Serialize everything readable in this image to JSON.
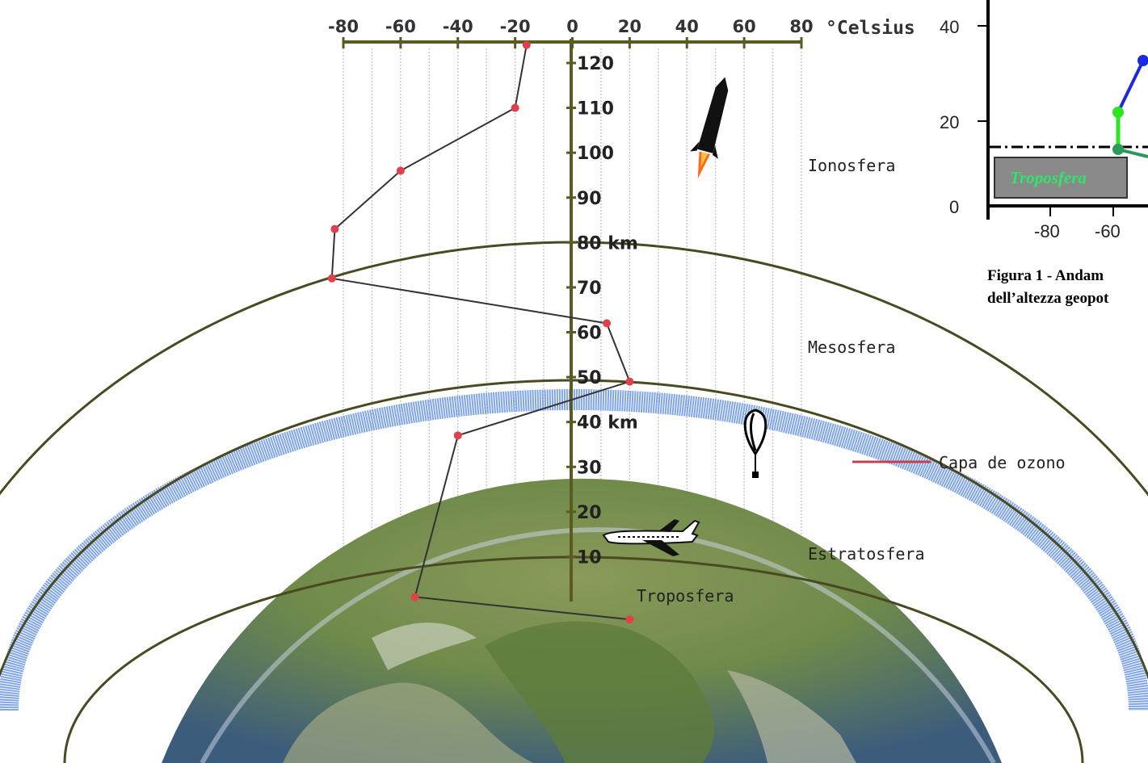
{
  "colors": {
    "axis": "#5b5a20",
    "shell": "#4a4a22",
    "ozone": "#7fa4e8",
    "profile_line": "#333333",
    "profile_point": "#e0404a",
    "grid": "#c9cbd4",
    "inset_blue": "#1a2ae0",
    "inset_green": "#2ee620",
    "inset_darkgreen": "#2c9a5a",
    "inset_box": "#8a8a8a"
  },
  "main": {
    "temp_unit": "°Celsius",
    "temp_ticks": [
      "-80",
      "-60",
      "-40",
      "-20",
      "0",
      "20",
      "40",
      "60",
      "80"
    ],
    "altitude_ticks": [
      "120",
      "110",
      "100",
      "90",
      "80 km",
      "70",
      "60",
      "50",
      "40 km",
      "30",
      "20",
      "10"
    ],
    "layers": {
      "ionosfera": "Ionosfera",
      "mesosfera": "Mesosfera",
      "estratosfera": "Estratosfera",
      "troposfera": "Troposfera",
      "ozone": "Capa de ozono"
    },
    "icons": [
      "rocket-icon",
      "balloon-icon",
      "airplane-icon",
      "earth-icon"
    ]
  },
  "chart_data": {
    "type": "line",
    "xlabel": "°Celsius",
    "xlim": [
      -80,
      80
    ],
    "ylim": [
      0,
      120
    ],
    "series": [
      {
        "x": [
          20,
          -55,
          -40,
          20,
          12,
          -84,
          -83,
          -60,
          -20,
          -16
        ],
        "y": [
          -4,
          1,
          37,
          49,
          62,
          72,
          83,
          96,
          110,
          124
        ]
      }
    ]
  },
  "inset": {
    "y_ticks": [
      "40",
      "20",
      "0"
    ],
    "x_ticks": [
      "-80",
      "-60"
    ],
    "troposfera_label": "Troposfera",
    "caption_line1": "Figura 1 - Andam",
    "caption_line2": "dell’altezza geopot"
  }
}
